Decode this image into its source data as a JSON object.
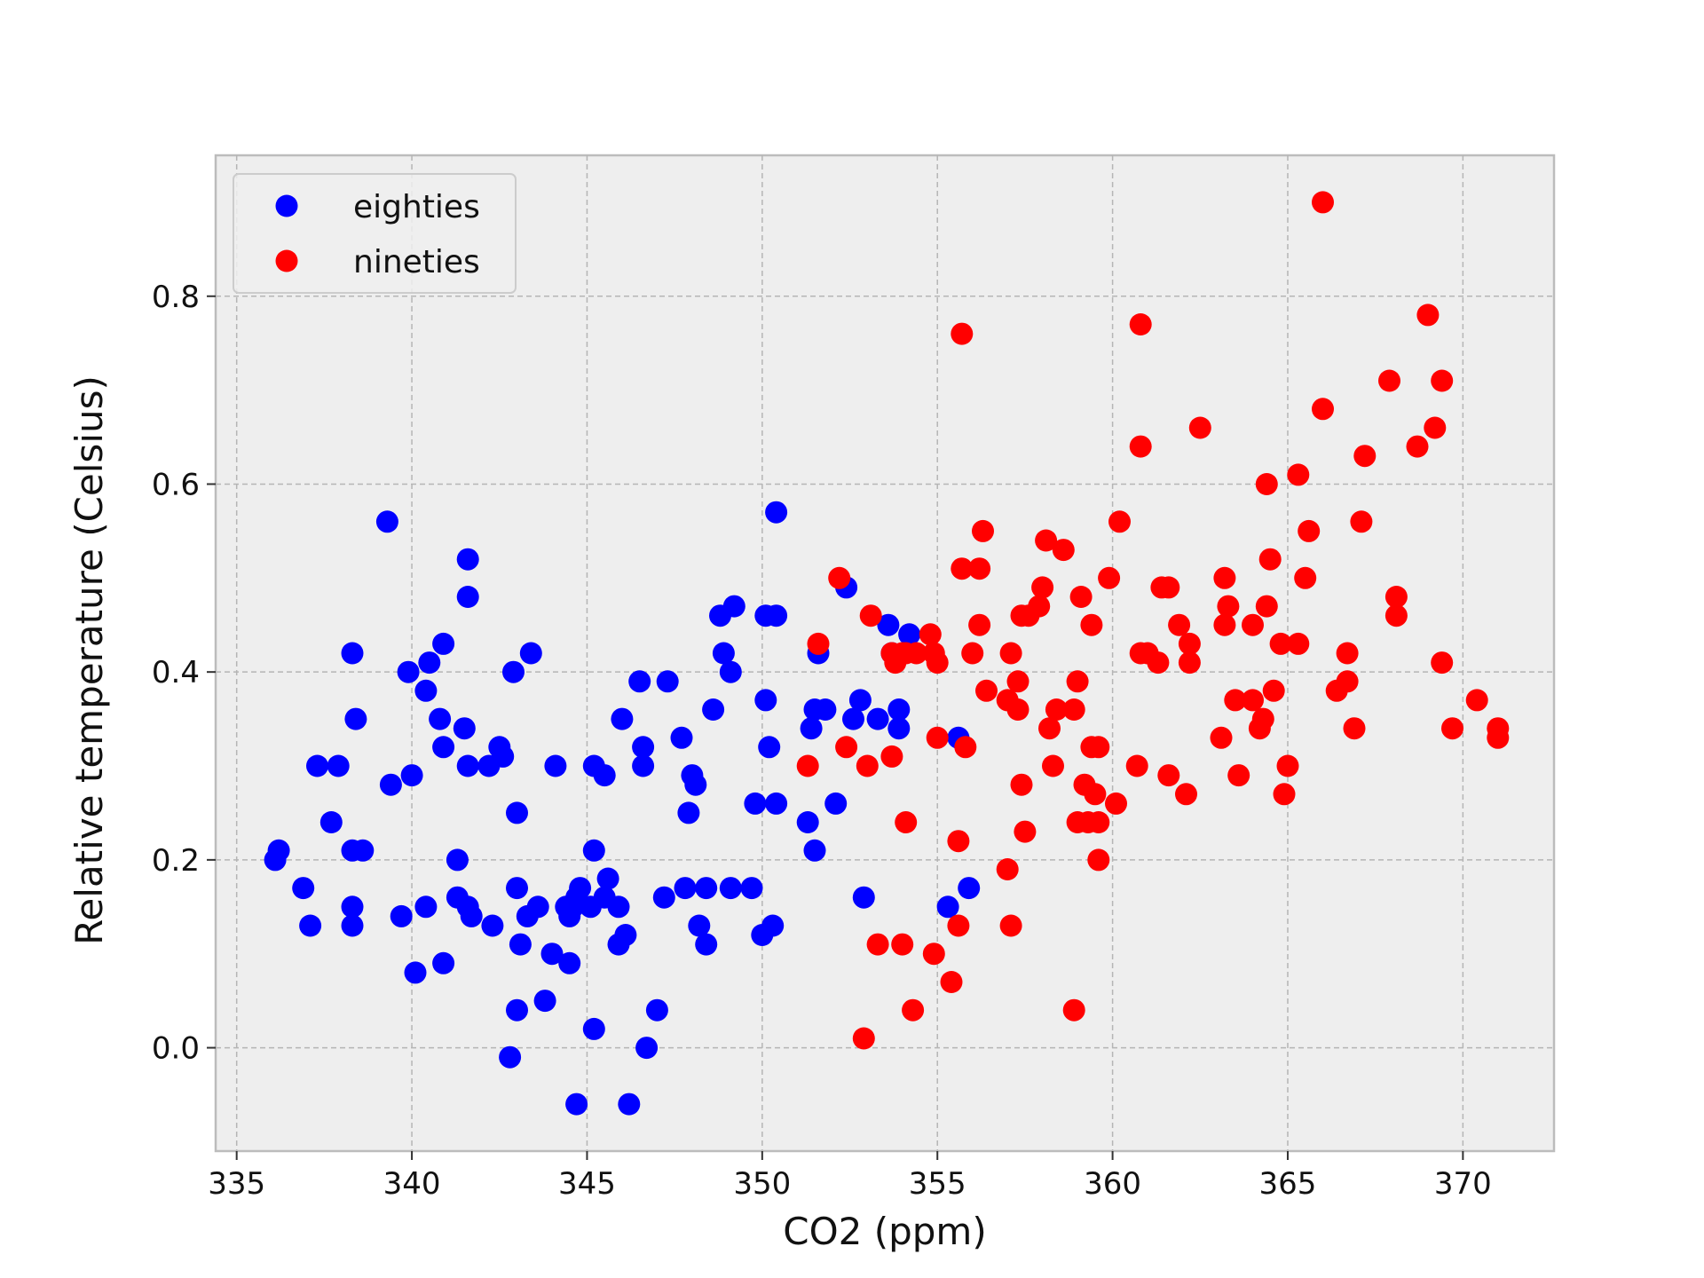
{
  "chart_data": {
    "type": "scatter",
    "title": "",
    "xlabel": "CO2 (ppm)",
    "ylabel": "Relative temperature (Celsius)",
    "xlim": [
      334.4,
      372.6
    ],
    "ylim": [
      -0.11,
      0.95
    ],
    "xticks": [
      335,
      340,
      345,
      350,
      355,
      360,
      365,
      370
    ],
    "yticks": [
      0.0,
      0.2,
      0.4,
      0.6,
      0.8
    ],
    "xtick_labels": [
      "335",
      "340",
      "345",
      "350",
      "355",
      "360",
      "365",
      "370"
    ],
    "ytick_labels": [
      "0.0",
      "0.2",
      "0.4",
      "0.6",
      "0.8"
    ],
    "grid": true,
    "legend_position": "upper-left",
    "series": [
      {
        "name": "eighties",
        "color": "#0000ff",
        "points": [
          [
            336.2,
            0.21
          ],
          [
            336.1,
            0.2
          ],
          [
            336.9,
            0.17
          ],
          [
            337.1,
            0.13
          ],
          [
            337.3,
            0.3
          ],
          [
            337.9,
            0.3
          ],
          [
            337.7,
            0.24
          ],
          [
            338.3,
            0.42
          ],
          [
            338.4,
            0.35
          ],
          [
            338.3,
            0.21
          ],
          [
            338.6,
            0.21
          ],
          [
            338.3,
            0.15
          ],
          [
            338.3,
            0.13
          ],
          [
            339.3,
            0.56
          ],
          [
            339.4,
            0.28
          ],
          [
            339.9,
            0.4
          ],
          [
            340.0,
            0.29
          ],
          [
            339.7,
            0.14
          ],
          [
            340.1,
            0.08
          ],
          [
            340.4,
            0.38
          ],
          [
            340.5,
            0.41
          ],
          [
            340.8,
            0.35
          ],
          [
            340.9,
            0.43
          ],
          [
            340.9,
            0.32
          ],
          [
            340.4,
            0.15
          ],
          [
            340.9,
            0.09
          ],
          [
            341.6,
            0.52
          ],
          [
            341.6,
            0.48
          ],
          [
            341.5,
            0.34
          ],
          [
            341.6,
            0.3
          ],
          [
            341.3,
            0.2
          ],
          [
            341.3,
            0.16
          ],
          [
            341.6,
            0.15
          ],
          [
            341.7,
            0.14
          ],
          [
            342.2,
            0.3
          ],
          [
            342.5,
            0.32
          ],
          [
            342.6,
            0.31
          ],
          [
            342.3,
            0.13
          ],
          [
            342.8,
            -0.01
          ],
          [
            342.9,
            0.4
          ],
          [
            343.4,
            0.42
          ],
          [
            343.0,
            0.25
          ],
          [
            343.0,
            0.17
          ],
          [
            343.3,
            0.14
          ],
          [
            343.6,
            0.15
          ],
          [
            343.1,
            0.11
          ],
          [
            343.0,
            0.04
          ],
          [
            343.8,
            0.05
          ],
          [
            344.1,
            0.3
          ],
          [
            344.0,
            0.1
          ],
          [
            344.4,
            0.15
          ],
          [
            344.6,
            0.15
          ],
          [
            344.5,
            0.14
          ],
          [
            344.5,
            0.09
          ],
          [
            344.7,
            0.16
          ],
          [
            344.8,
            0.17
          ],
          [
            345.1,
            0.15
          ],
          [
            345.2,
            0.21
          ],
          [
            345.2,
            0.3
          ],
          [
            345.5,
            0.29
          ],
          [
            345.6,
            0.18
          ],
          [
            345.5,
            0.16
          ],
          [
            345.9,
            0.15
          ],
          [
            346.1,
            0.12
          ],
          [
            345.9,
            0.11
          ],
          [
            345.2,
            0.02
          ],
          [
            344.7,
            -0.06
          ],
          [
            346.2,
            -0.06
          ],
          [
            346.0,
            0.35
          ],
          [
            346.5,
            0.39
          ],
          [
            346.6,
            0.32
          ],
          [
            346.6,
            0.3
          ],
          [
            347.3,
            0.39
          ],
          [
            347.7,
            0.33
          ],
          [
            348.0,
            0.29
          ],
          [
            348.1,
            0.28
          ],
          [
            347.9,
            0.25
          ],
          [
            347.2,
            0.16
          ],
          [
            347.8,
            0.17
          ],
          [
            348.4,
            0.17
          ],
          [
            348.2,
            0.13
          ],
          [
            348.4,
            0.11
          ],
          [
            347.0,
            0.04
          ],
          [
            346.7,
            0.0
          ],
          [
            348.6,
            0.36
          ],
          [
            348.8,
            0.46
          ],
          [
            349.2,
            0.47
          ],
          [
            348.9,
            0.42
          ],
          [
            349.1,
            0.4
          ],
          [
            349.1,
            0.17
          ],
          [
            349.7,
            0.17
          ],
          [
            349.8,
            0.26
          ],
          [
            350.0,
            0.12
          ],
          [
            350.3,
            0.13
          ],
          [
            350.1,
            0.46
          ],
          [
            350.4,
            0.46
          ],
          [
            350.1,
            0.37
          ],
          [
            350.2,
            0.32
          ],
          [
            350.4,
            0.26
          ],
          [
            350.4,
            0.57
          ],
          [
            351.3,
            0.24
          ],
          [
            351.5,
            0.21
          ],
          [
            351.4,
            0.34
          ],
          [
            351.5,
            0.36
          ],
          [
            351.8,
            0.36
          ],
          [
            351.6,
            0.42
          ],
          [
            352.1,
            0.26
          ],
          [
            352.4,
            0.49
          ],
          [
            352.6,
            0.35
          ],
          [
            352.8,
            0.37
          ],
          [
            353.3,
            0.35
          ],
          [
            352.9,
            0.16
          ],
          [
            353.6,
            0.45
          ],
          [
            353.7,
            0.42
          ],
          [
            354.2,
            0.44
          ],
          [
            353.9,
            0.36
          ],
          [
            353.9,
            0.34
          ],
          [
            355.3,
            0.15
          ],
          [
            355.6,
            0.33
          ],
          [
            355.9,
            0.17
          ]
        ]
      },
      {
        "name": "nineties",
        "color": "#ff0000",
        "points": [
          [
            351.3,
            0.3
          ],
          [
            351.6,
            0.43
          ],
          [
            352.2,
            0.5
          ],
          [
            352.4,
            0.32
          ],
          [
            353.0,
            0.3
          ],
          [
            353.1,
            0.46
          ],
          [
            353.3,
            0.11
          ],
          [
            352.9,
            0.01
          ],
          [
            353.7,
            0.42
          ],
          [
            353.8,
            0.41
          ],
          [
            354.0,
            0.42
          ],
          [
            354.1,
            0.42
          ],
          [
            353.7,
            0.31
          ],
          [
            354.1,
            0.24
          ],
          [
            354.0,
            0.11
          ],
          [
            354.3,
            0.04
          ],
          [
            354.4,
            0.42
          ],
          [
            354.8,
            0.44
          ],
          [
            354.9,
            0.42
          ],
          [
            355.0,
            0.41
          ],
          [
            355.0,
            0.33
          ],
          [
            354.9,
            0.1
          ],
          [
            355.4,
            0.07
          ],
          [
            355.6,
            0.22
          ],
          [
            355.6,
            0.13
          ],
          [
            355.7,
            0.76
          ],
          [
            355.7,
            0.51
          ],
          [
            356.2,
            0.51
          ],
          [
            356.3,
            0.55
          ],
          [
            356.0,
            0.42
          ],
          [
            356.2,
            0.45
          ],
          [
            356.4,
            0.38
          ],
          [
            355.8,
            0.32
          ],
          [
            357.0,
            0.37
          ],
          [
            357.0,
            0.19
          ],
          [
            357.1,
            0.13
          ],
          [
            357.1,
            0.42
          ],
          [
            357.4,
            0.46
          ],
          [
            357.6,
            0.46
          ],
          [
            357.3,
            0.39
          ],
          [
            357.3,
            0.36
          ],
          [
            357.4,
            0.28
          ],
          [
            357.5,
            0.23
          ],
          [
            357.9,
            0.47
          ],
          [
            358.0,
            0.49
          ],
          [
            358.1,
            0.54
          ],
          [
            358.6,
            0.53
          ],
          [
            358.2,
            0.34
          ],
          [
            358.3,
            0.3
          ],
          [
            358.4,
            0.36
          ],
          [
            358.9,
            0.36
          ],
          [
            359.1,
            0.48
          ],
          [
            359.0,
            0.39
          ],
          [
            359.4,
            0.45
          ],
          [
            359.2,
            0.28
          ],
          [
            359.4,
            0.32
          ],
          [
            359.6,
            0.32
          ],
          [
            359.5,
            0.27
          ],
          [
            359.0,
            0.24
          ],
          [
            359.3,
            0.24
          ],
          [
            359.6,
            0.24
          ],
          [
            359.6,
            0.2
          ],
          [
            358.9,
            0.04
          ],
          [
            359.9,
            0.5
          ],
          [
            360.2,
            0.56
          ],
          [
            360.1,
            0.26
          ],
          [
            360.8,
            0.77
          ],
          [
            360.8,
            0.64
          ],
          [
            360.8,
            0.42
          ],
          [
            361.0,
            0.42
          ],
          [
            361.3,
            0.41
          ],
          [
            360.7,
            0.3
          ],
          [
            361.4,
            0.49
          ],
          [
            361.6,
            0.49
          ],
          [
            361.9,
            0.45
          ],
          [
            362.2,
            0.43
          ],
          [
            362.2,
            0.41
          ],
          [
            361.6,
            0.29
          ],
          [
            362.1,
            0.27
          ],
          [
            362.5,
            0.66
          ],
          [
            363.2,
            0.5
          ],
          [
            363.3,
            0.47
          ],
          [
            363.2,
            0.45
          ],
          [
            363.5,
            0.37
          ],
          [
            363.1,
            0.33
          ],
          [
            363.6,
            0.29
          ],
          [
            364.0,
            0.37
          ],
          [
            364.0,
            0.45
          ],
          [
            364.2,
            0.34
          ],
          [
            364.3,
            0.35
          ],
          [
            364.4,
            0.6
          ],
          [
            364.4,
            0.47
          ],
          [
            364.5,
            0.52
          ],
          [
            364.6,
            0.38
          ],
          [
            364.8,
            0.43
          ],
          [
            365.0,
            0.3
          ],
          [
            364.9,
            0.27
          ],
          [
            365.3,
            0.61
          ],
          [
            365.6,
            0.55
          ],
          [
            365.5,
            0.5
          ],
          [
            365.3,
            0.43
          ],
          [
            366.0,
            0.9
          ],
          [
            366.0,
            0.68
          ],
          [
            366.4,
            0.38
          ],
          [
            366.7,
            0.39
          ],
          [
            366.7,
            0.42
          ],
          [
            366.9,
            0.34
          ],
          [
            367.1,
            0.56
          ],
          [
            367.2,
            0.63
          ],
          [
            367.9,
            0.71
          ],
          [
            368.1,
            0.48
          ],
          [
            368.1,
            0.46
          ],
          [
            368.7,
            0.64
          ],
          [
            369.0,
            0.78
          ],
          [
            369.2,
            0.66
          ],
          [
            369.4,
            0.71
          ],
          [
            369.4,
            0.41
          ],
          [
            369.7,
            0.34
          ],
          [
            370.4,
            0.37
          ],
          [
            371.0,
            0.34
          ],
          [
            371.0,
            0.33
          ]
        ]
      }
    ]
  }
}
